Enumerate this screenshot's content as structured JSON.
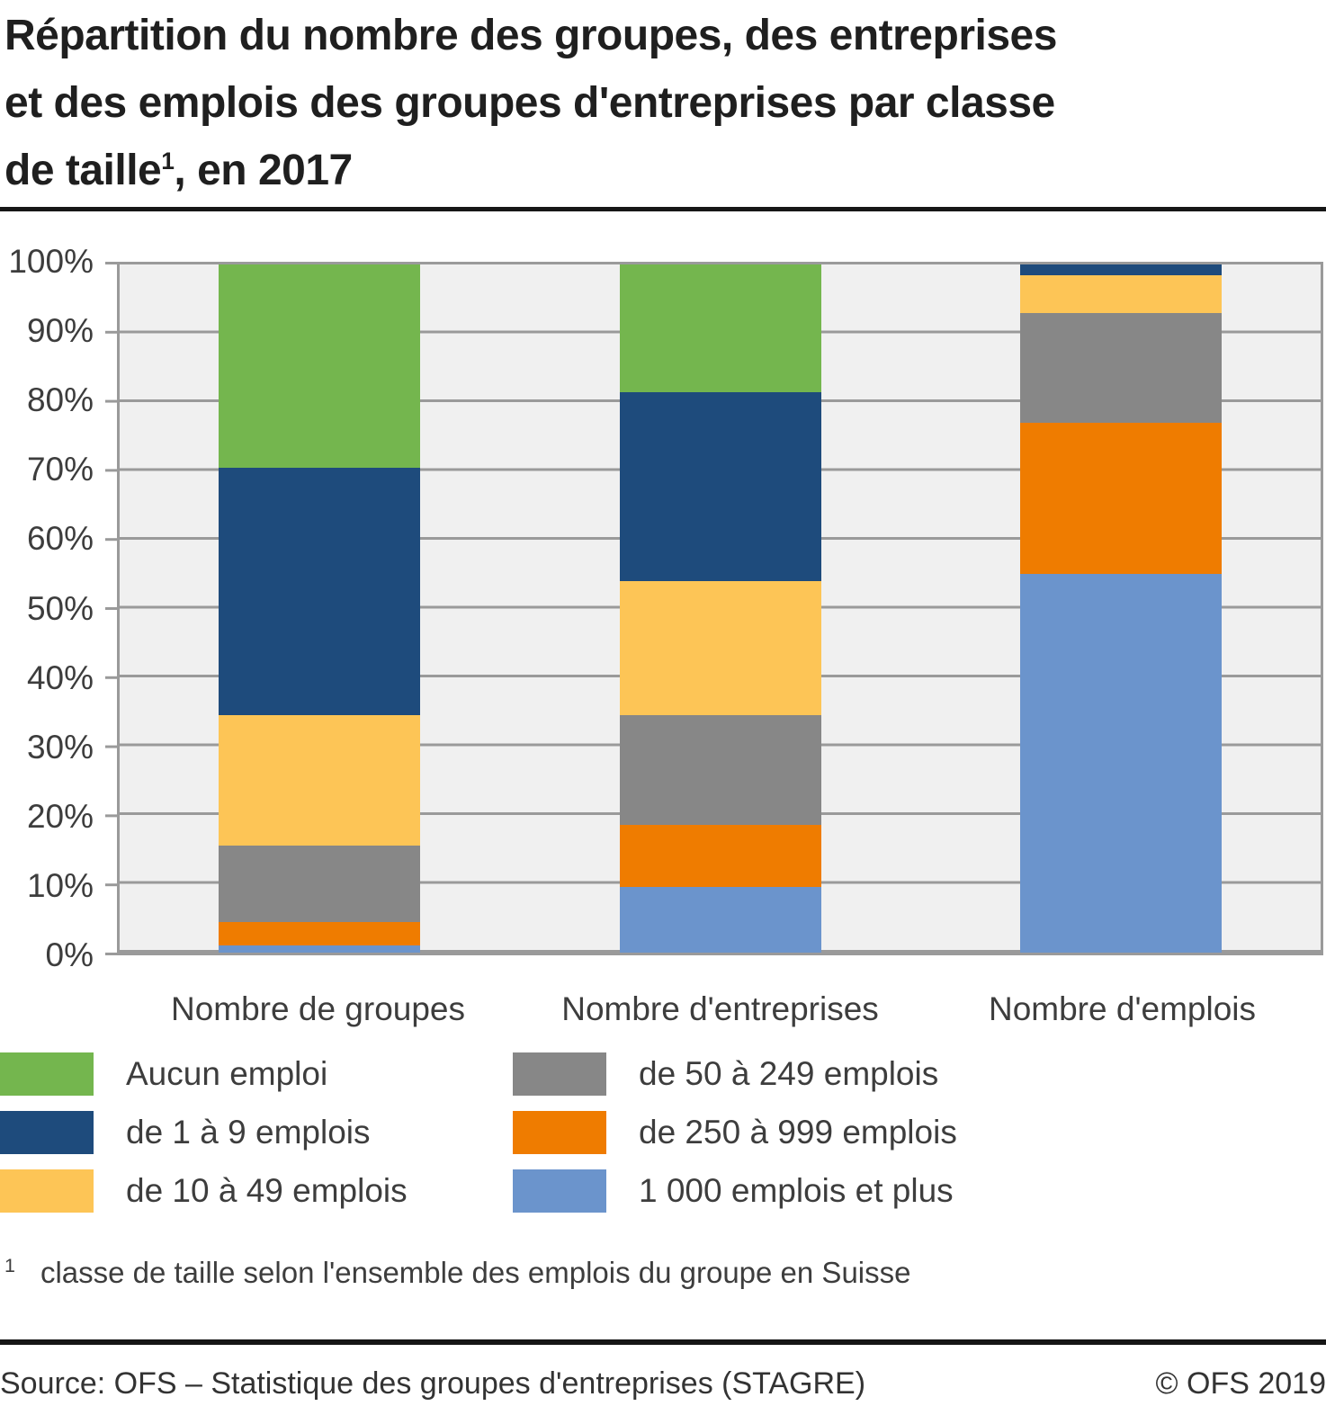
{
  "title": {
    "lines": [
      "Répartition du nombre des groupes, des entreprises",
      "et des emplois des groupes d'entreprises par classe"
    ],
    "line3_pre": "de taille",
    "line3_sup": "1",
    "line3_post": ", en 2017"
  },
  "chart_data": {
    "type": "bar",
    "stacked": true,
    "unit": "%",
    "title": "Répartition du nombre des groupes, des entreprises et des emplois des groupes d'entreprises par classe de taille, en 2017",
    "categories": [
      "Nombre de groupes",
      "Nombre d'entreprises",
      "Nombre d'emplois"
    ],
    "series": [
      {
        "name": "Aucun emploi",
        "color": "#74b64e",
        "values": [
          29.5,
          18.5,
          0
        ]
      },
      {
        "name": "de 1 à 9 emplois",
        "color": "#1e4b7c",
        "values": [
          36,
          27.5,
          1.5
        ]
      },
      {
        "name": "de 10 à 49 emplois",
        "color": "#fdc556",
        "values": [
          19,
          19.5,
          5.5
        ]
      },
      {
        "name": "de 50 à 249 emplois",
        "color": "#878787",
        "values": [
          11,
          16,
          16
        ]
      },
      {
        "name": "de 250 à 999 emplois",
        "color": "#ef7c00",
        "values": [
          3.5,
          9,
          22
        ]
      },
      {
        "name": "1 000 emplois et plus",
        "color": "#6b94cc",
        "values": [
          1,
          9.5,
          55
        ]
      }
    ],
    "stacking_note": "first series is topmost segment of each bar",
    "y_ticks": [
      "100%",
      "90%",
      "80%",
      "70%",
      "60%",
      "50%",
      "40%",
      "30%",
      "20%",
      "10%",
      "0%"
    ],
    "ylim": [
      0,
      100
    ],
    "grid": "horizontal",
    "plot_background": "#f0f0f0",
    "grid_color": "#9a9a9a",
    "legend_position": "bottom"
  },
  "legend": {
    "columns": [
      [
        "Aucun emploi",
        "de 1 à 9 emplois",
        "de 10 à 49 emplois"
      ],
      [
        "de 50 à 249 emplois",
        "de 250 à 999 emplois",
        "1 000 emplois et plus"
      ]
    ]
  },
  "footnote": {
    "sup": "1",
    "text": "classe de taille selon l'ensemble des emplois du groupe en Suisse"
  },
  "footer": {
    "source": "Source: OFS – Statistique des groupes d'entreprises (STAGRE)",
    "copyright": "© OFS 2019"
  }
}
